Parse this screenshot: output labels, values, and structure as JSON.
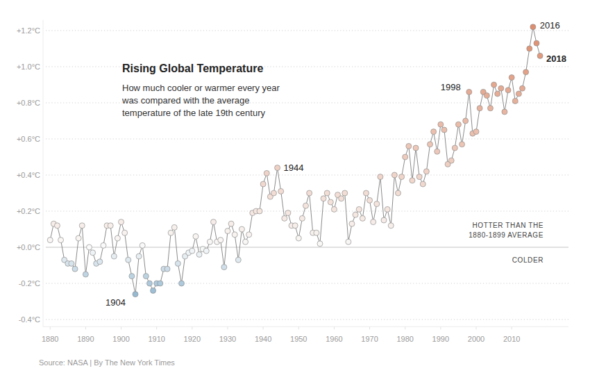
{
  "chart_data": {
    "type": "line",
    "title": "Rising Global Temperature",
    "subtitle": [
      "How much cooler or warmer every year",
      "was compared with the average",
      "temperature of the late 19th century"
    ],
    "source": "Source: NASA | By The New York Times",
    "zero_line_labels": {
      "above": [
        "HOTTER THAN THE",
        "1880-1899 AVERAGE"
      ],
      "below": "COLDER"
    },
    "annotations": [
      {
        "text": "1904",
        "x": 1904
      },
      {
        "text": "1944",
        "x": 1944
      },
      {
        "text": "1998",
        "x": 1998
      },
      {
        "text": "2016",
        "x": 2016
      },
      {
        "text": "2018",
        "x": 2018
      }
    ],
    "x": [
      1880,
      1881,
      1882,
      1883,
      1884,
      1885,
      1886,
      1887,
      1888,
      1889,
      1890,
      1891,
      1892,
      1893,
      1894,
      1895,
      1896,
      1897,
      1898,
      1899,
      1900,
      1901,
      1902,
      1903,
      1904,
      1905,
      1906,
      1907,
      1908,
      1909,
      1910,
      1911,
      1912,
      1913,
      1914,
      1915,
      1916,
      1917,
      1918,
      1919,
      1920,
      1921,
      1922,
      1923,
      1924,
      1925,
      1926,
      1927,
      1928,
      1929,
      1930,
      1931,
      1932,
      1933,
      1934,
      1935,
      1936,
      1937,
      1938,
      1939,
      1940,
      1941,
      1942,
      1943,
      1944,
      1945,
      1946,
      1947,
      1948,
      1949,
      1950,
      1951,
      1952,
      1953,
      1954,
      1955,
      1956,
      1957,
      1958,
      1959,
      1960,
      1961,
      1962,
      1963,
      1964,
      1965,
      1966,
      1967,
      1968,
      1969,
      1970,
      1971,
      1972,
      1973,
      1974,
      1975,
      1976,
      1977,
      1978,
      1979,
      1980,
      1981,
      1982,
      1983,
      1984,
      1985,
      1986,
      1987,
      1988,
      1989,
      1990,
      1991,
      1992,
      1993,
      1994,
      1995,
      1996,
      1997,
      1998,
      1999,
      2000,
      2001,
      2002,
      2003,
      2004,
      2005,
      2006,
      2007,
      2008,
      2009,
      2010,
      2011,
      2012,
      2013,
      2014,
      2015,
      2016,
      2017,
      2018
    ],
    "values": [
      0.04,
      0.13,
      0.12,
      0.04,
      -0.07,
      -0.09,
      -0.09,
      -0.12,
      0.05,
      0.12,
      -0.15,
      0.0,
      -0.03,
      -0.09,
      -0.08,
      0.01,
      0.12,
      0.12,
      -0.05,
      0.05,
      0.14,
      0.08,
      -0.07,
      -0.16,
      -0.26,
      -0.05,
      0.01,
      -0.16,
      -0.2,
      -0.24,
      -0.2,
      -0.2,
      -0.12,
      -0.12,
      0.08,
      0.11,
      -0.09,
      -0.2,
      -0.05,
      -0.03,
      -0.02,
      0.06,
      -0.04,
      -0.01,
      -0.02,
      0.03,
      0.14,
      0.03,
      0.04,
      -0.11,
      0.09,
      0.13,
      0.07,
      -0.07,
      0.1,
      0.03,
      0.07,
      0.19,
      0.2,
      0.2,
      0.35,
      0.41,
      0.28,
      0.3,
      0.44,
      0.31,
      0.16,
      0.19,
      0.12,
      0.12,
      0.05,
      0.16,
      0.23,
      0.3,
      0.08,
      0.08,
      0.02,
      0.27,
      0.3,
      0.25,
      0.21,
      0.29,
      0.27,
      0.3,
      0.03,
      0.13,
      0.18,
      0.21,
      0.16,
      0.3,
      0.26,
      0.14,
      0.24,
      0.39,
      0.15,
      0.21,
      0.12,
      0.4,
      0.3,
      0.39,
      0.5,
      0.56,
      0.37,
      0.55,
      0.39,
      0.35,
      0.42,
      0.57,
      0.64,
      0.53,
      0.68,
      0.65,
      0.46,
      0.48,
      0.55,
      0.68,
      0.57,
      0.7,
      0.86,
      0.63,
      0.64,
      0.77,
      0.86,
      0.84,
      0.77,
      0.9,
      0.85,
      0.88,
      0.75,
      0.87,
      0.94,
      0.81,
      0.85,
      0.88,
      0.97,
      1.1,
      1.22,
      1.13,
      1.06
    ],
    "xlim": [
      1878,
      2026
    ],
    "ylim": [
      -0.44,
      1.26
    ],
    "xticks": [
      1880,
      1890,
      1900,
      1910,
      1920,
      1930,
      1940,
      1950,
      1960,
      1970,
      1980,
      1990,
      2000,
      2010
    ],
    "yticks": [
      {
        "value": 1.2,
        "label": "+1.2°C"
      },
      {
        "value": 1.0,
        "label": "+1.0°C"
      },
      {
        "value": 0.8,
        "label": "+0.8°C"
      },
      {
        "value": 0.6,
        "label": "+0.6°C"
      },
      {
        "value": 0.4,
        "label": "+0.4°C"
      },
      {
        "value": 0.2,
        "label": "+0.2°C"
      },
      {
        "value": 0.0,
        "label": "+0.0°C"
      },
      {
        "value": -0.2,
        "label": "-0.2°C"
      },
      {
        "value": -0.4,
        "label": "-0.4°C"
      }
    ],
    "grid": true,
    "marker": "circle"
  }
}
